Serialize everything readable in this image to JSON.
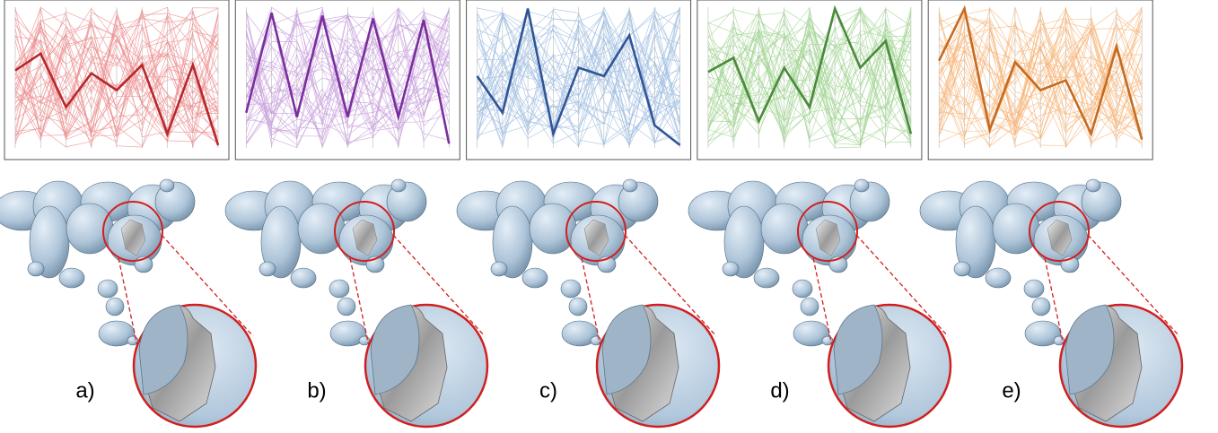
{
  "panels": [
    {
      "label": "a)",
      "color": "#b8272b",
      "light": "#ec8f90",
      "highlight": [
        0.55,
        0.67,
        0.29,
        0.53,
        0.41,
        0.59,
        0.1,
        0.59,
        0.02
      ]
    },
    {
      "label": "b)",
      "color": "#7a2e9e",
      "light": "#c8a0dc",
      "highlight": [
        0.25,
        0.96,
        0.22,
        0.94,
        0.22,
        0.92,
        0.22,
        0.91,
        0.03
      ]
    },
    {
      "label": "c)",
      "color": "#2f5597",
      "light": "#9fbde0",
      "highlight": [
        0.51,
        0.25,
        0.99,
        0.1,
        0.57,
        0.51,
        0.8,
        0.16,
        0.02
      ]
    },
    {
      "label": "d)",
      "color": "#4a8a3a",
      "light": "#a2d493",
      "highlight": [
        0.54,
        0.64,
        0.19,
        0.57,
        0.29,
        0.99,
        0.57,
        0.76,
        0.1
      ]
    },
    {
      "label": "e)",
      "color": "#c66a1e",
      "light": "#f6b67c",
      "highlight": [
        0.62,
        0.99,
        0.13,
        0.61,
        0.41,
        0.48,
        0.1,
        0.72,
        0.06
      ]
    }
  ]
}
